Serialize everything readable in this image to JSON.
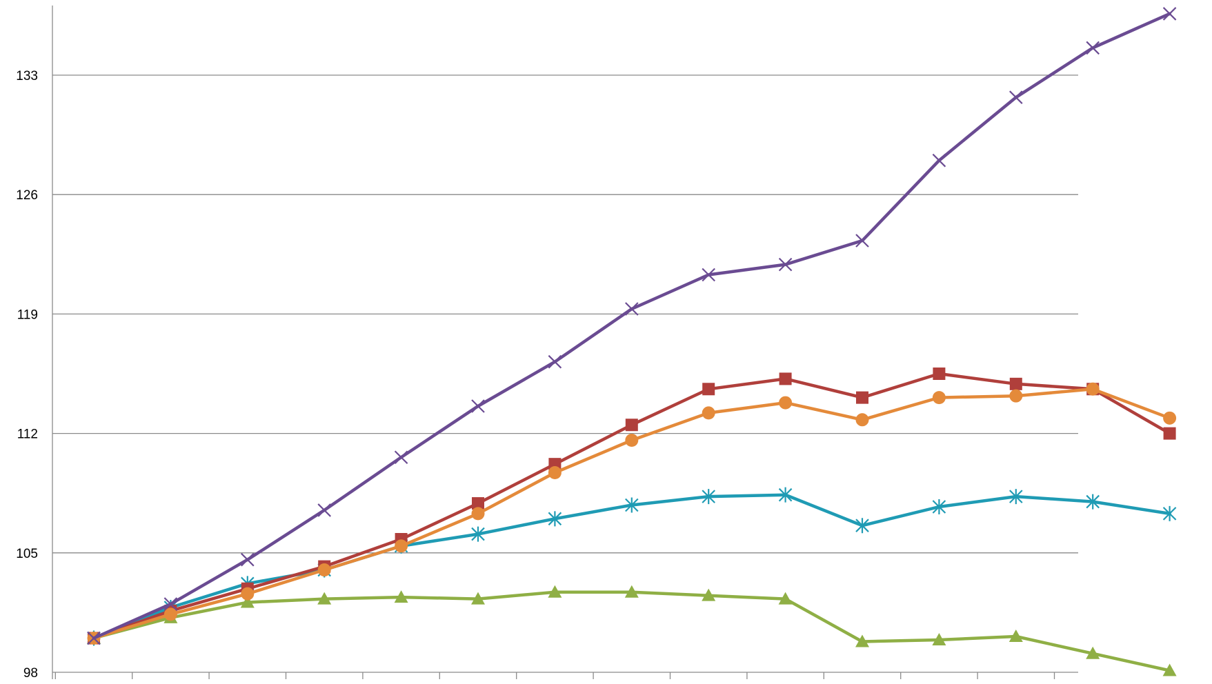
{
  "chart_data": {
    "type": "line",
    "title": "",
    "xlabel": "",
    "ylabel": "",
    "x": [
      1,
      2,
      3,
      4,
      5,
      6,
      7,
      8,
      9,
      10,
      11,
      12,
      13,
      14,
      15
    ],
    "xlim": [
      0.5,
      15.5
    ],
    "ylim": [
      98,
      137
    ],
    "yticks": [
      98,
      105,
      112,
      119,
      126,
      133
    ],
    "grid": true,
    "legend": "none",
    "series": [
      {
        "color": "#1f9bb4",
        "marker": "star",
        "values": [
          100.0,
          101.8,
          103.2,
          104.0,
          105.4,
          106.1,
          107.0,
          107.8,
          108.3,
          108.4,
          106.6,
          107.7,
          108.3,
          108.0,
          107.3
        ]
      },
      {
        "color": "#8faf45",
        "marker": "triangle",
        "values": [
          100.0,
          101.2,
          102.1,
          102.3,
          102.4,
          102.3,
          102.7,
          102.7,
          102.5,
          102.3,
          99.8,
          99.9,
          100.1,
          99.1,
          98.1
        ]
      },
      {
        "color": "#b03f3b",
        "marker": "square",
        "values": [
          100.0,
          101.6,
          102.9,
          104.2,
          105.8,
          107.9,
          110.2,
          112.5,
          114.6,
          115.2,
          114.1,
          115.5,
          114.9,
          114.6,
          112.0
        ]
      },
      {
        "color": "#e48a3a",
        "marker": "circle",
        "values": [
          100.0,
          101.4,
          102.6,
          104.0,
          105.4,
          107.3,
          109.7,
          111.6,
          113.2,
          113.8,
          112.8,
          114.1,
          114.2,
          114.6,
          112.9
        ]
      },
      {
        "color": "#6a4b92",
        "marker": "x",
        "values": [
          100.0,
          102.0,
          104.6,
          107.5,
          110.6,
          113.6,
          116.2,
          119.3,
          121.3,
          121.9,
          123.3,
          128.0,
          131.7,
          134.6,
          136.6
        ]
      }
    ]
  }
}
